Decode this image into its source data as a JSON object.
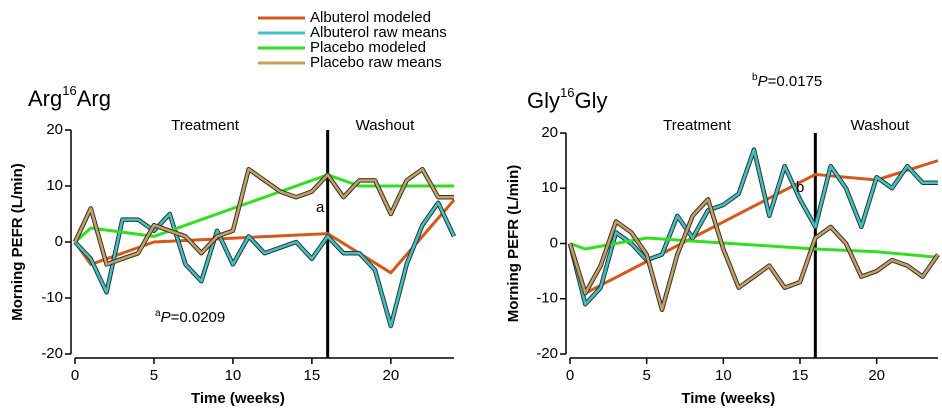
{
  "legend": [
    {
      "name": "Albuterol modeled",
      "color": "#d4581a"
    },
    {
      "name": "Albuterol raw means",
      "color": "#3cc4c4"
    },
    {
      "name": "Placebo modeled",
      "color": "#33dd22"
    },
    {
      "name": "Placebo raw means",
      "color": "#c8a060"
    }
  ],
  "chart_data": [
    {
      "type": "line",
      "title": [
        "Arg",
        "16",
        "Arg"
      ],
      "phases": [
        "Treatment",
        "Washout"
      ],
      "phase_boundary": 16,
      "pvalue": {
        "sup": "a",
        "italic": "P",
        "rest": "=0.0209"
      },
      "marker": "a",
      "x_label": "Time (weeks)",
      "y_label": "Morning PEFR (L/min)",
      "xlim": [
        0,
        24
      ],
      "ylim": [
        -20,
        20
      ],
      "xticks": [
        0,
        5,
        10,
        15,
        20
      ],
      "yticks": [
        -20,
        -10,
        0,
        10,
        20
      ],
      "series": [
        {
          "color": "#d4581a",
          "x": [
            0,
            1,
            5,
            16,
            20,
            24
          ],
          "values": [
            0,
            -4,
            0,
            1.5,
            -5.5,
            7.5
          ]
        },
        {
          "color": "#3cc4c4",
          "x": [
            0,
            1,
            2,
            3,
            4,
            5,
            6,
            7,
            8,
            9,
            10,
            11,
            12,
            13,
            14,
            15,
            16,
            17,
            18,
            19,
            20,
            21,
            22,
            23,
            24
          ],
          "values": [
            0,
            -3,
            -9,
            4,
            4,
            2,
            5,
            -4,
            -7,
            2,
            -4,
            1,
            -2,
            -1,
            0,
            -3,
            1,
            -2,
            -2,
            -5,
            -15,
            -4,
            3,
            7,
            1
          ]
        },
        {
          "color": "#33dd22",
          "x": [
            0,
            1,
            5,
            16,
            18,
            24
          ],
          "values": [
            0,
            2.5,
            1,
            12,
            10,
            10
          ]
        },
        {
          "color": "#c8a060",
          "x": [
            0,
            1,
            2,
            3,
            4,
            5,
            6,
            7,
            8,
            9,
            10,
            11,
            12,
            13,
            14,
            15,
            16,
            17,
            18,
            19,
            20,
            21,
            22,
            23,
            24
          ],
          "values": [
            0,
            6,
            -4,
            -3,
            -2,
            3,
            2,
            1,
            -2,
            1,
            2,
            13,
            11,
            9,
            8,
            9,
            12,
            8,
            11,
            11,
            5,
            11,
            13,
            8,
            8
          ]
        }
      ]
    },
    {
      "type": "line",
      "title": [
        "Gly",
        "16",
        "Gly"
      ],
      "phases": [
        "Treatment",
        "Washout"
      ],
      "phase_boundary": 16,
      "pvalue": {
        "sup": "b",
        "italic": "P",
        "rest": "=0.0175"
      },
      "marker": "b",
      "x_label": "Time (weeks)",
      "y_label": "Morning PEFR (L/min)",
      "xlim": [
        0,
        24
      ],
      "ylim": [
        -20,
        20
      ],
      "xticks": [
        0,
        5,
        10,
        15,
        20
      ],
      "yticks": [
        -20,
        -10,
        0,
        10,
        20
      ],
      "series": [
        {
          "color": "#d4581a",
          "x": [
            0,
            1,
            16,
            20,
            24
          ],
          "values": [
            0,
            -9,
            12.5,
            11.5,
            15
          ]
        },
        {
          "color": "#3cc4c4",
          "x": [
            0,
            1,
            2,
            3,
            4,
            5,
            6,
            7,
            8,
            9,
            10,
            11,
            12,
            13,
            14,
            15,
            16,
            17,
            18,
            19,
            20,
            21,
            22,
            23,
            24
          ],
          "values": [
            0,
            -11,
            -8,
            2,
            0,
            -3,
            -2,
            5,
            1,
            6,
            7,
            9,
            17,
            5,
            14,
            8,
            3,
            14,
            10,
            3,
            12,
            10,
            14,
            11,
            11
          ]
        },
        {
          "color": "#33dd22",
          "x": [
            0,
            1,
            5,
            16,
            20,
            24
          ],
          "values": [
            0,
            -1,
            1,
            -1,
            -1.5,
            -2.5
          ]
        },
        {
          "color": "#c8a060",
          "x": [
            0,
            1,
            2,
            3,
            4,
            5,
            6,
            7,
            8,
            9,
            10,
            11,
            12,
            13,
            14,
            15,
            16,
            17,
            18,
            19,
            20,
            21,
            22,
            23,
            24
          ],
          "values": [
            0,
            -9,
            -4,
            4,
            2,
            -2,
            -12,
            -2,
            5,
            8,
            -1,
            -8,
            -6,
            -4,
            -8,
            -7,
            1,
            3,
            0,
            -6,
            -5,
            -3,
            -4,
            -6,
            -2
          ]
        }
      ]
    }
  ]
}
